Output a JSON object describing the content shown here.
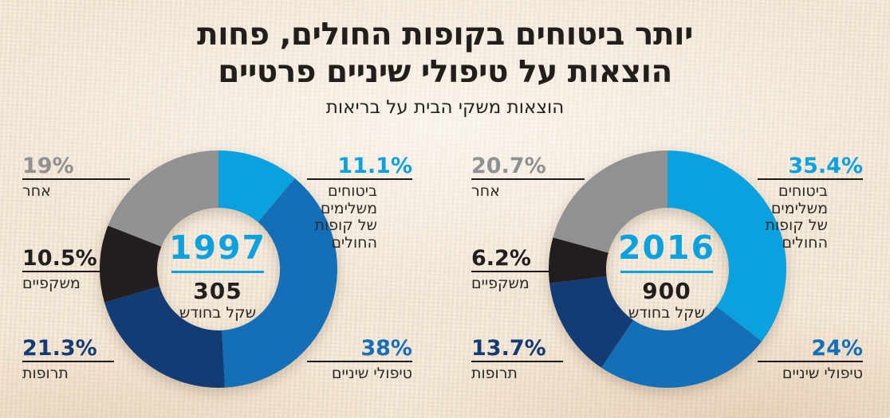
{
  "title": {
    "line1": "יותר ביטוחים בקופות החולים, פחות",
    "line2": "הוצאות על טיפולי שיניים פרטיים"
  },
  "subtitle": "הוצאות משקי הבית על בריאות",
  "colors": {
    "light_blue": "#0aa1df",
    "mid_blue": "#156fb7",
    "navy": "#143c74",
    "black": "#221e1f",
    "gray": "#8f9193",
    "rule_black": "#1c1a18",
    "background_paper": "#f3e7d6",
    "title_text": "#211e1b"
  },
  "chart_data": [
    {
      "type": "donut",
      "year": "1997",
      "center_value": "305",
      "center_unit": "שקל בחודש",
      "start_angle_deg": 0,
      "direction": "clockwise",
      "slices": [
        {
          "label": "ביטוחים משלימים של קופות החולים",
          "pct_label": "11.1%",
          "value": 11.1,
          "color_key": "light_blue"
        },
        {
          "label": "טיפולי שיניים",
          "pct_label": "38%",
          "value": 38,
          "color_key": "mid_blue"
        },
        {
          "label": "תרופות",
          "pct_label": "21.3%",
          "value": 21.3,
          "color_key": "navy"
        },
        {
          "label": "משקפיים",
          "pct_label": "10.5%",
          "value": 10.5,
          "color_key": "black"
        },
        {
          "label": "אחר",
          "pct_label": "19%",
          "value": 19,
          "color_key": "gray"
        }
      ]
    },
    {
      "type": "donut",
      "year": "2016",
      "center_value": "900",
      "center_unit": "שקל בחודש",
      "start_angle_deg": 0,
      "direction": "clockwise",
      "slices": [
        {
          "label": "ביטוחים משלימים של קופות החולים",
          "pct_label": "35.4%",
          "value": 35.4,
          "color_key": "light_blue"
        },
        {
          "label": "טיפולי שיניים",
          "pct_label": "24%",
          "value": 24,
          "color_key": "mid_blue"
        },
        {
          "label": "תרופות",
          "pct_label": "13.7%",
          "value": 13.7,
          "color_key": "navy"
        },
        {
          "label": "משקפיים",
          "pct_label": "6.2%",
          "value": 6.2,
          "color_key": "black"
        },
        {
          "label": "אחר",
          "pct_label": "20.7%",
          "value": 20.7,
          "color_key": "gray"
        }
      ]
    }
  ]
}
